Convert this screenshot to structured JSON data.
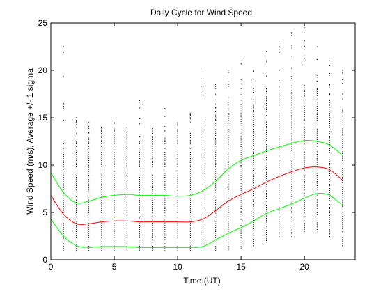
{
  "chart_data": {
    "type": "line",
    "title": "Daily Cycle for Wind Speed",
    "xlabel": "Time (UT)",
    "ylabel": "Wind Speed (m/s), Average +/- 1 sigma",
    "xlim": [
      0,
      24
    ],
    "ylim": [
      0,
      25
    ],
    "xticks": [
      0,
      5,
      10,
      15,
      20
    ],
    "yticks": [
      0,
      5,
      10,
      15,
      20,
      25
    ],
    "grid": false,
    "legend": "none",
    "x": [
      0,
      1,
      2,
      3,
      4,
      5,
      6,
      7,
      8,
      9,
      10,
      11,
      12,
      13,
      14,
      15,
      16,
      17,
      18,
      19,
      20,
      21,
      22,
      23
    ],
    "series": [
      {
        "color": "#00ff00",
        "values": [
          9.2,
          7.1,
          6.0,
          6.2,
          6.6,
          6.8,
          6.9,
          6.8,
          6.8,
          6.8,
          6.7,
          6.8,
          7.3,
          8.3,
          9.6,
          10.5,
          11.0,
          11.5,
          11.9,
          12.3,
          12.6,
          12.5,
          12.1,
          11.0
        ]
      },
      {
        "color": "#ff0000",
        "values": [
          6.8,
          4.8,
          3.8,
          3.8,
          4.0,
          4.1,
          4.1,
          4.0,
          4.0,
          4.0,
          4.0,
          4.0,
          4.3,
          5.2,
          6.2,
          6.9,
          7.5,
          8.2,
          8.8,
          9.3,
          9.7,
          9.8,
          9.5,
          8.4
        ]
      },
      {
        "color": "#00ff00",
        "values": [
          4.3,
          2.5,
          1.5,
          1.3,
          1.4,
          1.4,
          1.4,
          1.3,
          1.3,
          1.3,
          1.3,
          1.3,
          1.4,
          2.1,
          2.8,
          3.4,
          4.1,
          4.9,
          5.4,
          5.9,
          6.5,
          7.0,
          6.8,
          5.7
        ]
      }
    ],
    "scatter": {
      "color": "#000000",
      "description_free": true,
      "columns": [
        {
          "x": 1,
          "min": 1.0,
          "max": 22.5,
          "dense_max": 12.0
        },
        {
          "x": 2,
          "min": 1.0,
          "max": 15.0,
          "dense_max": 12.5
        },
        {
          "x": 3,
          "min": 1.0,
          "max": 14.5,
          "dense_max": 13.0
        },
        {
          "x": 4,
          "min": 1.0,
          "max": 14.0,
          "dense_max": 13.5
        },
        {
          "x": 5,
          "min": 1.0,
          "max": 14.5,
          "dense_max": 13.5
        },
        {
          "x": 6,
          "min": 1.0,
          "max": 14.0,
          "dense_max": 13.0
        },
        {
          "x": 7,
          "min": 1.0,
          "max": 16.8,
          "dense_max": 12.5
        },
        {
          "x": 8,
          "min": 1.0,
          "max": 14.0,
          "dense_max": 13.0
        },
        {
          "x": 9,
          "min": 1.0,
          "max": 16.0,
          "dense_max": 13.0
        },
        {
          "x": 10,
          "min": 1.0,
          "max": 14.5,
          "dense_max": 13.5
        },
        {
          "x": 11,
          "min": 1.0,
          "max": 15.5,
          "dense_max": 13.5
        },
        {
          "x": 12,
          "min": 1.0,
          "max": 20.0,
          "dense_max": 14.0
        },
        {
          "x": 13,
          "min": 1.0,
          "max": 18.5,
          "dense_max": 15.5
        },
        {
          "x": 14,
          "min": 1.0,
          "max": 20.0,
          "dense_max": 16.0
        },
        {
          "x": 15,
          "min": 1.2,
          "max": 21.0,
          "dense_max": 16.5
        },
        {
          "x": 16,
          "min": 1.5,
          "max": 20.0,
          "dense_max": 17.0
        },
        {
          "x": 17,
          "min": 2.0,
          "max": 22.0,
          "dense_max": 17.5
        },
        {
          "x": 18,
          "min": 2.5,
          "max": 23.0,
          "dense_max": 18.0
        },
        {
          "x": 19,
          "min": 2.5,
          "max": 24.0,
          "dense_max": 18.5
        },
        {
          "x": 20,
          "min": 3.0,
          "max": 24.5,
          "dense_max": 18.5
        },
        {
          "x": 21,
          "min": 3.0,
          "max": 22.5,
          "dense_max": 18.0
        },
        {
          "x": 22,
          "min": 2.5,
          "max": 21.0,
          "dense_max": 17.0
        },
        {
          "x": 23,
          "min": 1.5,
          "max": 20.0,
          "dense_max": 15.5
        }
      ]
    }
  }
}
